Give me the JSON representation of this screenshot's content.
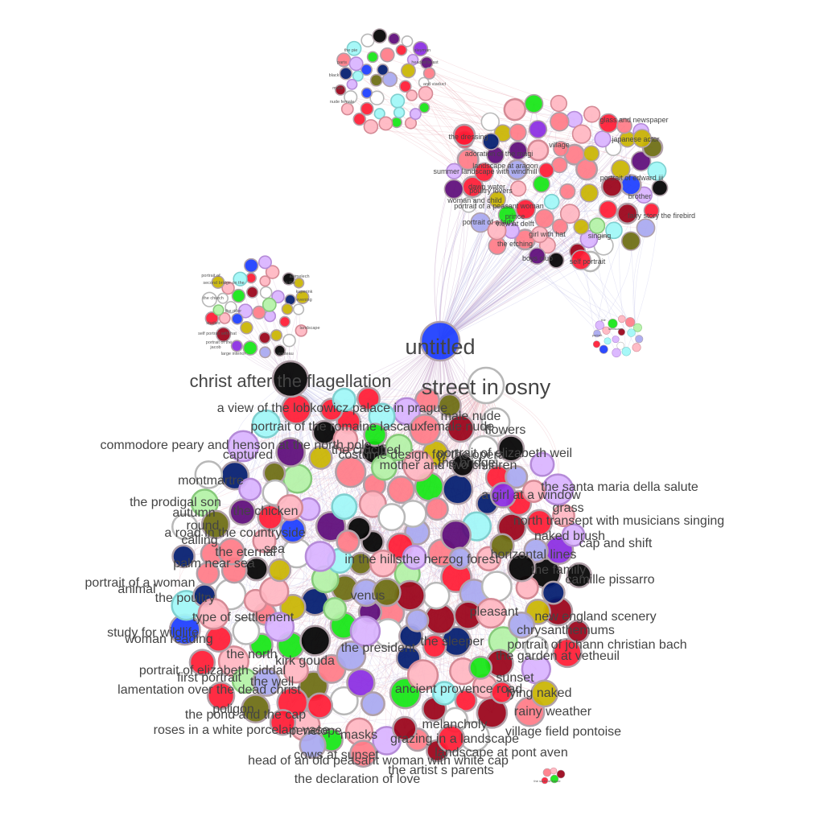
{
  "diagram": {
    "type": "network-graph",
    "edge_colors": [
      "#c5a3c8",
      "#b9b9e6",
      "#e7a9b3"
    ],
    "node_palette": {
      "pink": "#ffb6c1",
      "light_red": "#ff7b87",
      "red": "#ff1a33",
      "dark_red": "#990017",
      "blue": "#1a3cff",
      "navy": "#001a6e",
      "violet": "#8a2be2",
      "dark_violet": "#5c0a78",
      "lavender": "#d9b3ff",
      "periwinkle": "#a8a8f0",
      "cyan": "#9ff7f7",
      "green": "#14e614",
      "light_green": "#b3f2a6",
      "olive": "#6b6b10",
      "gold": "#c9b400",
      "black": "#000000",
      "white": "#ffffff"
    },
    "hubs": [
      {
        "label": "untitled",
        "color": "blue"
      },
      {
        "label": "christ after the flagellation",
        "color": "black"
      },
      {
        "label": "street in osny",
        "color": "white"
      }
    ],
    "main_cluster_labels": [
      "a view of the lobkowicz palace in prague",
      "portrait of the romaine lascaux",
      "male nude",
      "female nude",
      "flowers",
      "commodore peary and henson at the north pole",
      "portrait of elizabeth weil",
      "captured",
      "costume design for the opera",
      "the crucified",
      "mother and two children",
      "the bridge",
      "montmartre",
      "the santa maria della salute",
      "the prodigal son",
      "a girl at a window",
      "the chicken",
      "grass",
      "north transept with musicians singing",
      "autumn",
      "round",
      "a road in the countryside",
      "naked brush",
      "calling",
      "cap and shift",
      "the eternal",
      "sea",
      "horizontal lines",
      "palm near sea",
      "in the hills",
      "the family",
      "portrait of a woman",
      "the herzog forest",
      "camille pissarro",
      "animal",
      "the poultry",
      "venus",
      "type of settlement",
      "pleasant",
      "new england scenery",
      "study for wildlife",
      "chrysanthemums",
      "woman reading",
      "the sleeper",
      "the president",
      "portrait of johann christian bach",
      "the garden at vetheuil",
      "the north",
      "kirk gouda",
      "portrait of elizabeth siddal",
      "first portrait",
      "the well",
      "sunset",
      "lamentation over the dead christ",
      "ancient provence road",
      "lying naked",
      "poligon",
      "the pond and the cap",
      "rainy weather",
      "roses in a white porcelain vase",
      "penelope",
      "melancholy",
      "village field pontoise",
      "masks",
      "grazing in a landscape",
      "cows at sunset",
      "landscape at pont aven",
      "head of an old peasant woman with white cap",
      "the artist s parents",
      "the declaration of love"
    ],
    "upper_right_cluster_labels": [
      "the dressing",
      "adoration of the magi",
      "landscape at aragon",
      "summer landscape with windmill",
      "dawn water",
      "poultry lovers",
      "woman and child",
      "portrait of a peasant woman",
      "prince",
      "view at delft",
      "portrait of a lady",
      "girl with hat",
      "the etching",
      "boys club",
      "self portrait",
      "glass and newspaper",
      "japanese actor",
      "portrait of edward iii",
      "brother",
      "fairy story the firebird",
      "singing",
      "village"
    ],
    "top_cluster_labels": [
      "paris",
      "black",
      "make",
      "nude female",
      "the pie",
      "sleyman",
      "headed beast",
      "and viaduct"
    ],
    "left_cluster_labels": [
      "second bridge on the",
      "portrait of",
      "the church",
      "studies",
      "self portrait with hat",
      "portrait of the",
      "large interior",
      "jacob",
      "the rider",
      "landscape",
      "kuperink",
      "abimelech",
      "in the",
      "evening",
      "watteau"
    ],
    "minor_cluster_labels": [
      "the",
      "landscape",
      "portrait",
      "the south of france"
    ]
  }
}
